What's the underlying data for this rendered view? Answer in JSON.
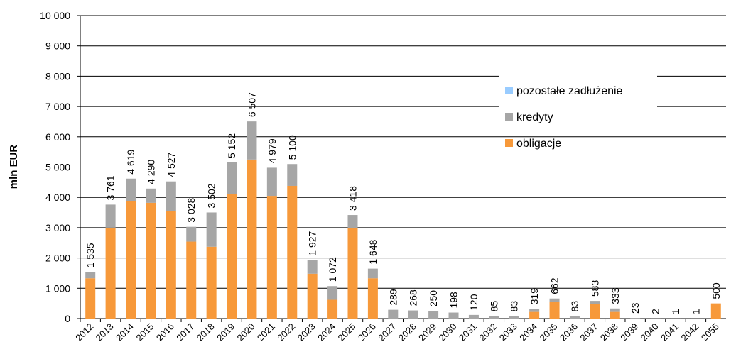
{
  "chart_data": {
    "type": "stacked_bar",
    "y_label": "mln EUR",
    "categories": [
      "2012",
      "2013",
      "2014",
      "2015",
      "2016",
      "2017",
      "2018",
      "2019",
      "2020",
      "2021",
      "2022",
      "2023",
      "2024",
      "2025",
      "2026",
      "2027",
      "2028",
      "2029",
      "2030",
      "2031",
      "2032",
      "2033",
      "2034",
      "2035",
      "2036",
      "2037",
      "2038",
      "2039",
      "2040",
      "2041",
      "2042",
      "2055"
    ],
    "series": [
      {
        "name": "obligacje",
        "color": "#f7993a",
        "values": [
          1330,
          3000,
          3870,
          3820,
          3540,
          2540,
          2370,
          4100,
          5250,
          4050,
          4380,
          1480,
          620,
          2990,
          1330,
          0,
          0,
          0,
          0,
          0,
          0,
          0,
          220,
          560,
          0,
          490,
          220,
          0,
          0,
          0,
          0,
          500
        ]
      },
      {
        "name": "kredyty",
        "color": "#a6a6a6",
        "values": [
          205,
          761,
          749,
          470,
          987,
          488,
          1132,
          1052,
          1257,
          929,
          720,
          447,
          452,
          428,
          318,
          289,
          268,
          250,
          198,
          120,
          85,
          83,
          99,
          102,
          83,
          93,
          113,
          23,
          2,
          1,
          1,
          0
        ]
      },
      {
        "name": "pozostałe zadłużenie",
        "color": "#99ccff",
        "values": [
          0,
          0,
          0,
          0,
          0,
          0,
          0,
          0,
          0,
          0,
          0,
          0,
          0,
          0,
          0,
          0,
          0,
          0,
          0,
          0,
          0,
          0,
          0,
          0,
          0,
          0,
          0,
          0,
          0,
          0,
          0,
          0
        ]
      }
    ],
    "total_labels": [
      "1 535",
      "3 761",
      "4 619",
      "4 290",
      "4 527",
      "3 028",
      "3 502",
      "5 152",
      "6 507",
      "4 979",
      "5 100",
      "1 927",
      "1 072",
      "3 418",
      "1 648",
      "289",
      "268",
      "250",
      "198",
      "120",
      "85",
      "83",
      "319",
      "662",
      "83",
      "583",
      "333",
      "23",
      "2",
      "1",
      "1",
      "500"
    ],
    "ylim": [
      0,
      10000
    ],
    "yticks": [
      0,
      {
        "value": 1000,
        "label": "1 000"
      },
      {
        "value": 2000,
        "label": "2 000"
      },
      {
        "value": 3000,
        "label": "3 000"
      },
      {
        "value": 4000,
        "label": "4 000"
      },
      {
        "value": 5000,
        "label": "5 000"
      },
      {
        "value": 6000,
        "label": "6 000"
      },
      {
        "value": 7000,
        "label": "7 000"
      },
      {
        "value": 8000,
        "label": "8 000"
      },
      {
        "value": 9000,
        "label": "9 000"
      },
      {
        "value": 10000,
        "label": "10 000"
      }
    ],
    "grid": true,
    "legend": "upper right"
  }
}
